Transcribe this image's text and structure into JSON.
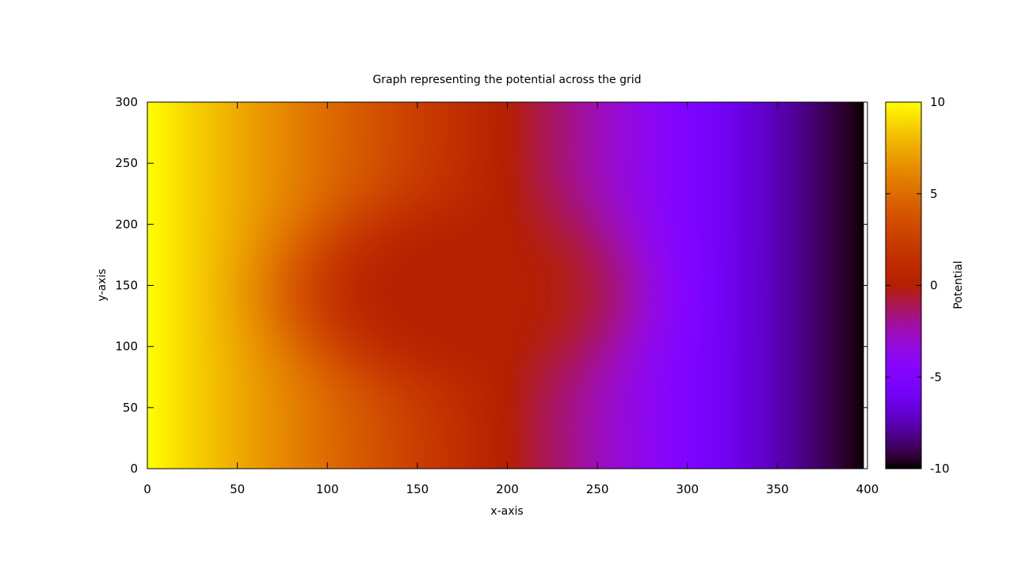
{
  "chart_data": {
    "type": "heatmap",
    "title": "Graph representing the potential across the grid",
    "xlabel": "x-axis",
    "ylabel": "y-axis",
    "xlim": [
      0,
      400
    ],
    "ylim": [
      0,
      300
    ],
    "x_ticks": [
      "0",
      "50",
      "100",
      "150",
      "200",
      "250",
      "300",
      "350",
      "400"
    ],
    "y_ticks": [
      "0",
      "50",
      "100",
      "150",
      "200",
      "250",
      "300"
    ],
    "grid": false,
    "data_x_max": 398,
    "data_y_max": 300,
    "colorbar": {
      "label": "Potential",
      "range": [
        -10,
        10
      ],
      "ticks": [
        "-10",
        "-5",
        "0",
        "5",
        "10"
      ],
      "palette": "gnuplot"
    },
    "potential_profile": {
      "x": [
        0,
        50,
        100,
        150,
        200,
        250,
        300,
        350,
        398
      ],
      "values": [
        10,
        7.5,
        5,
        2.5,
        0,
        -2.5,
        -5,
        -7.5,
        -10
      ]
    },
    "feature": {
      "type": "elliptical low-potential region",
      "center": [
        175,
        145
      ],
      "semi_axes": [
        95,
        78
      ],
      "value": 0
    }
  }
}
